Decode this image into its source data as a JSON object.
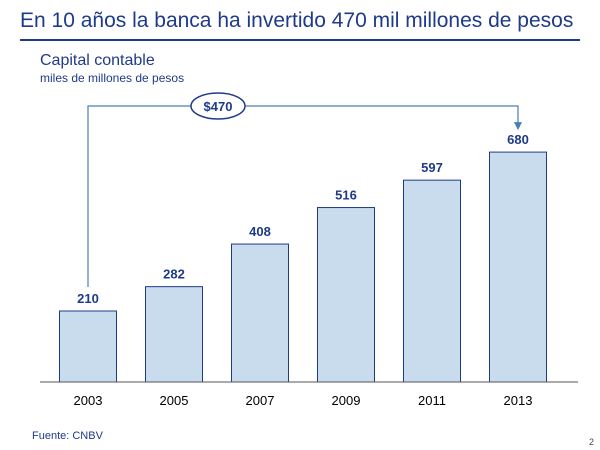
{
  "slide": {
    "title": "En 10 años la banca ha invertido 470 mil millones de pesos",
    "source": "Fuente: CNBV",
    "page_number": "2"
  },
  "colors": {
    "bar_fill": "#c9dcee",
    "bar_stroke": "#1f3a8a",
    "text": "#1f3a8a",
    "connector": "#4a7fb5"
  },
  "chart_data": {
    "type": "bar",
    "title": "Capital contable",
    "subtitle": "miles de millones de pesos",
    "categories": [
      "2003",
      "2005",
      "2007",
      "2009",
      "2011",
      "2013"
    ],
    "values": [
      210,
      282,
      408,
      516,
      597,
      680
    ],
    "data_labels": [
      "210",
      "282",
      "408",
      "516",
      "597",
      "680"
    ],
    "ylim": [
      0,
      840
    ],
    "grid": false,
    "legend": "none",
    "annotation": {
      "label": "$470",
      "from_category": "2003",
      "to_category": "2013"
    }
  }
}
